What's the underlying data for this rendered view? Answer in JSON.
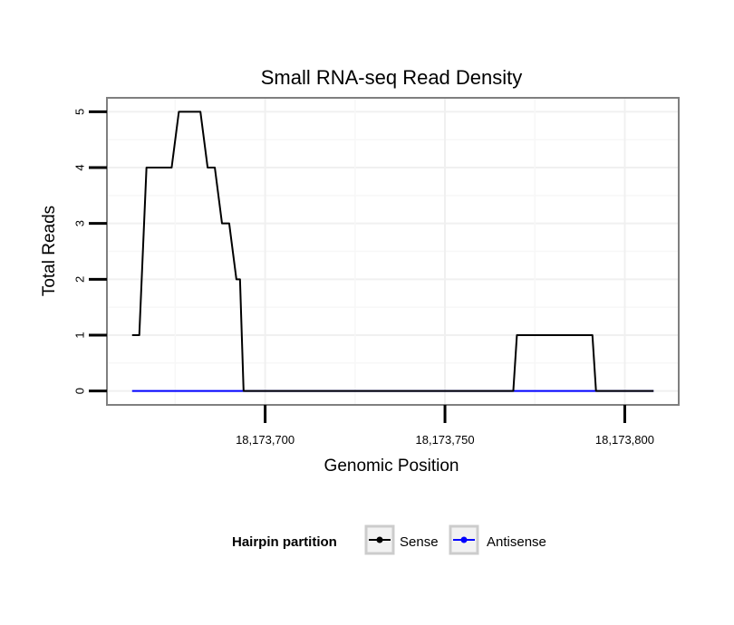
{
  "chart_data": {
    "type": "line",
    "title": "Small RNA-seq Read Density",
    "xlabel": "Genomic Position",
    "ylabel": "Total Reads",
    "xlim": [
      18173656,
      18173815
    ],
    "ylim": [
      -0.25,
      5.25
    ],
    "x_ticks": [
      18173700,
      18173750,
      18173800
    ],
    "x_tick_labels": [
      "18,173,700",
      "18,173,750",
      "18,173,800"
    ],
    "y_ticks": [
      0,
      1,
      2,
      3,
      4,
      5
    ],
    "y_tick_labels": [
      "0",
      "1",
      "2",
      "3",
      "4",
      "5"
    ],
    "grid": true,
    "legend": {
      "title": "Hairpin partition",
      "position": "bottom"
    },
    "series": [
      {
        "name": "Sense",
        "color": "#000000",
        "x": [
          18173663,
          18173665,
          18173667,
          18173674,
          18173676,
          18173682,
          18173684,
          18173686,
          18173688,
          18173690,
          18173692,
          18173693,
          18173694,
          18173695,
          18173769,
          18173770,
          18173791,
          18173792,
          18173808
        ],
        "y": [
          1,
          1,
          4,
          4,
          5,
          5,
          4,
          4,
          3,
          3,
          2,
          2,
          0,
          0,
          0,
          1,
          1,
          0,
          0
        ]
      },
      {
        "name": "Antisense",
        "color": "#0000ff",
        "x": [
          18173663,
          18173808
        ],
        "y": [
          0,
          0
        ]
      }
    ]
  }
}
